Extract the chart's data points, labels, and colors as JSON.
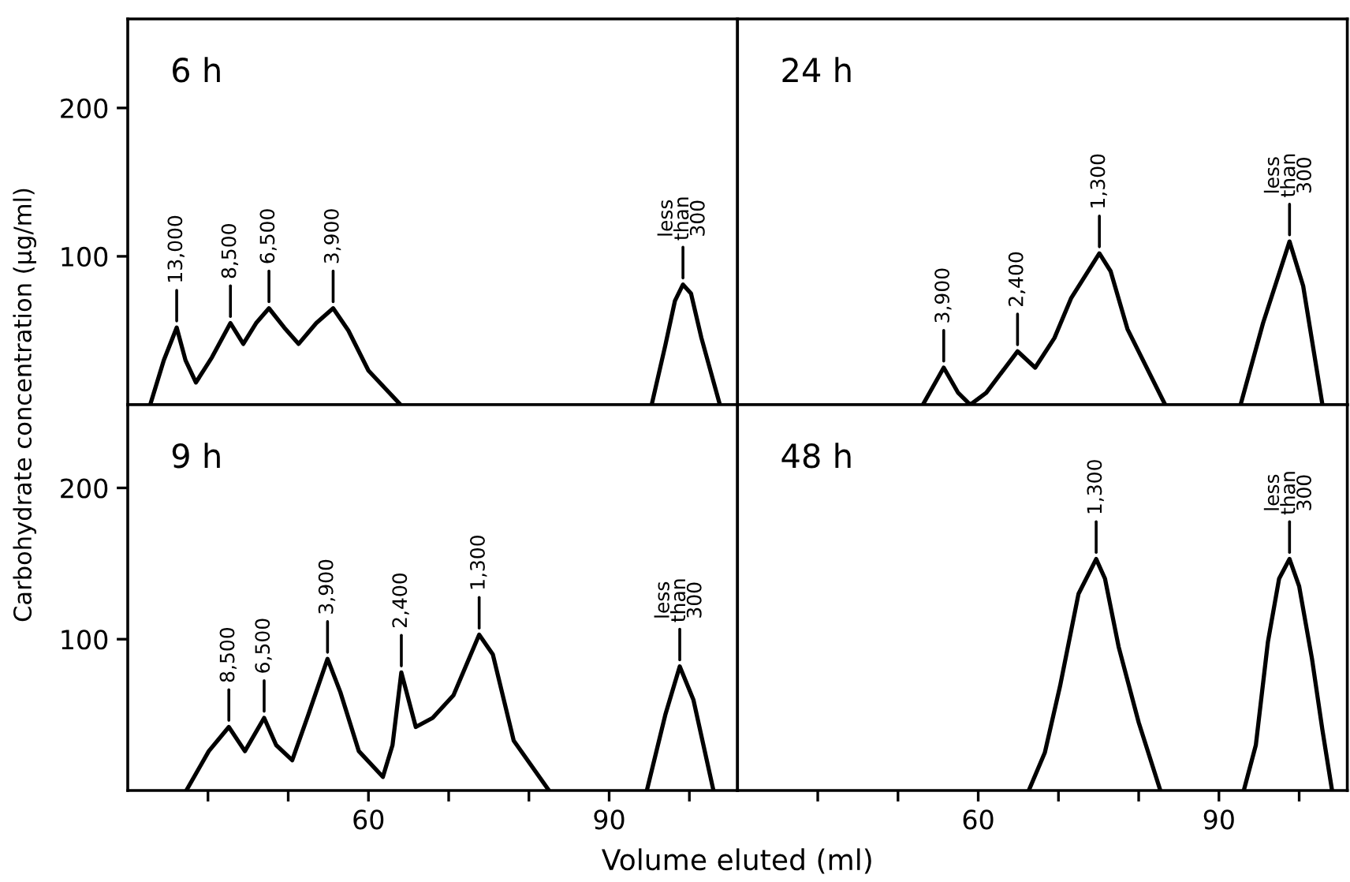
{
  "chart_data": [
    {
      "type": "line",
      "title": "6 h",
      "color": "#000000",
      "line_style": "solid",
      "marker": "none",
      "grid": false,
      "legend": false,
      "tick_labels": "y",
      "x": [
        32.8,
        34.5,
        36.1,
        37.2,
        38.5,
        40.5,
        42.8,
        44.4,
        46,
        47.6,
        49.5,
        51.3,
        53.5,
        55.6,
        57.5,
        60,
        64,
        70,
        95.3,
        97,
        98.2,
        99.2,
        100.2,
        101.5,
        103.8
      ],
      "values": [
        0,
        30,
        52,
        30,
        15,
        32,
        55,
        41,
        55,
        65,
        52,
        41,
        55,
        65,
        50,
        23,
        0,
        null,
        0,
        40,
        70,
        81,
        75,
        45,
        0
      ],
      "xlim": [
        30,
        106
      ],
      "ylim": [
        0,
        260
      ],
      "xticks": [
        {
          "value": 40,
          "label": null
        },
        {
          "value": 50,
          "label": null
        },
        {
          "value": 60,
          "label": null
        },
        {
          "value": 70,
          "label": null
        },
        {
          "value": 80,
          "label": null
        },
        {
          "value": 90,
          "label": null
        },
        {
          "value": 100,
          "label": null
        }
      ],
      "yticks": [
        100,
        200
      ],
      "annotations": [
        {
          "text": "13,000",
          "x": 36.1,
          "y": 52
        },
        {
          "text": "8,500",
          "x": 42.8,
          "y": 55
        },
        {
          "text": "6,500",
          "x": 47.6,
          "y": 65
        },
        {
          "text": "3,900",
          "x": 55.6,
          "y": 65
        },
        {
          "text": "less\nthan\n300",
          "x": 99.2,
          "y": 81
        }
      ]
    },
    {
      "type": "line",
      "title": "24 h",
      "color": "#000000",
      "line_style": "solid",
      "marker": "none",
      "grid": false,
      "legend": false,
      "tick_labels": false,
      "x": [
        53.1,
        55.7,
        57.5,
        59,
        61,
        64.9,
        67.1,
        69.5,
        71.6,
        75.1,
        76.5,
        78.6,
        83.3,
        85,
        92.7,
        95.5,
        98.8,
        100.5,
        102.9
      ],
      "values": [
        0,
        25,
        8,
        0,
        8,
        36,
        25,
        45,
        72,
        102,
        90,
        51,
        0,
        null,
        0,
        55,
        110,
        80,
        0
      ],
      "xlim": [
        30,
        106
      ],
      "ylim": [
        0,
        260
      ],
      "xticks": [
        {
          "value": 40,
          "label": null
        },
        {
          "value": 50,
          "label": null
        },
        {
          "value": 60,
          "label": null
        },
        {
          "value": 70,
          "label": null
        },
        {
          "value": 80,
          "label": null
        },
        {
          "value": 90,
          "label": null
        },
        {
          "value": 100,
          "label": null
        }
      ],
      "annotations": [
        {
          "text": "3,900",
          "x": 55.7,
          "y": 25
        },
        {
          "text": "2,400",
          "x": 64.9,
          "y": 36
        },
        {
          "text": "1,300",
          "x": 75.1,
          "y": 102
        },
        {
          "text": "less\nthan\n300",
          "x": 98.8,
          "y": 110
        }
      ]
    },
    {
      "type": "line",
      "title": "9 h",
      "color": "#000000",
      "line_style": "solid",
      "marker": "none",
      "grid": false,
      "legend": false,
      "xlabel": "Volume eluted (ml)",
      "ylabel": "Carbohydrate concentration (μg/ml)",
      "x": [
        37.3,
        40.1,
        42.6,
        44.6,
        47,
        48.5,
        50.5,
        52.5,
        54.9,
        56.5,
        58.8,
        61.8,
        63,
        64.1,
        65.9,
        68,
        70.6,
        73.8,
        75.5,
        78.1,
        82.5,
        88,
        94.7,
        97,
        98.8,
        100.5,
        103
      ],
      "values": [
        0,
        26,
        42,
        26,
        48,
        30,
        20,
        50,
        87,
        65,
        26,
        9,
        30,
        78,
        42,
        48,
        63,
        103,
        90,
        33,
        0,
        null,
        0,
        50,
        82,
        60,
        0
      ],
      "xlim": [
        30,
        106
      ],
      "ylim": [
        0,
        255
      ],
      "xticks": [
        {
          "value": 40,
          "label": null
        },
        {
          "value": 50,
          "label": null
        },
        60,
        {
          "value": 70,
          "label": null
        },
        {
          "value": 80,
          "label": null
        },
        90,
        {
          "value": 100,
          "label": null
        }
      ],
      "yticks": [
        100,
        200
      ],
      "annotations": [
        {
          "text": "8,500",
          "x": 42.6,
          "y": 42
        },
        {
          "text": "6,500",
          "x": 47,
          "y": 48
        },
        {
          "text": "3,900",
          "x": 54.9,
          "y": 87
        },
        {
          "text": "2,400",
          "x": 64.1,
          "y": 78
        },
        {
          "text": "1,300",
          "x": 73.8,
          "y": 103
        },
        {
          "text": "less\nthan\n300",
          "x": 98.8,
          "y": 82
        }
      ]
    },
    {
      "type": "line",
      "title": "48 h",
      "color": "#000000",
      "line_style": "solid",
      "marker": "none",
      "grid": false,
      "legend": false,
      "tick_labels": "x",
      "x": [
        66.3,
        68.3,
        70.2,
        72.5,
        74.7,
        75.8,
        77.5,
        80,
        82.7,
        88,
        93.1,
        94.6,
        96.1,
        97.5,
        98.8,
        100,
        101.6,
        102.9,
        104.1
      ],
      "values": [
        0,
        25,
        69,
        130,
        153,
        140,
        95,
        45,
        0,
        null,
        0,
        30,
        98,
        140,
        153,
        135,
        87,
        40,
        0
      ],
      "xlim": [
        30,
        106
      ],
      "ylim": [
        0,
        255
      ],
      "xticks": [
        {
          "value": 40,
          "label": null
        },
        {
          "value": 50,
          "label": null
        },
        60,
        {
          "value": 70,
          "label": null
        },
        {
          "value": 80,
          "label": null
        },
        90,
        {
          "value": 100,
          "label": null
        }
      ],
      "annotations": [
        {
          "text": "1,300",
          "x": 74.7,
          "y": 153
        },
        {
          "text": "less\nthan\n300",
          "x": 98.8,
          "y": 153
        }
      ]
    }
  ]
}
